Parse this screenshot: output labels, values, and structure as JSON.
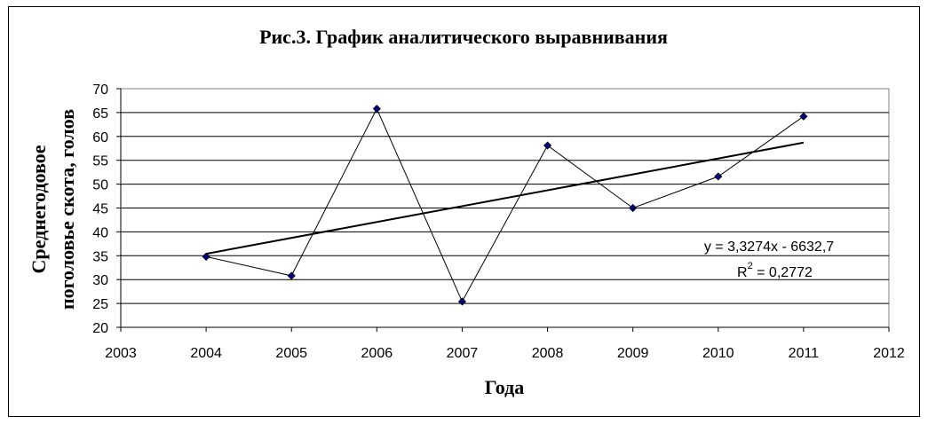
{
  "chart_data": {
    "type": "scatter",
    "title": "Рис.3. График аналитического выравнивания",
    "xlabel": "Года",
    "ylabel_line1": "Среднегодовое",
    "ylabel_line2": "поголовье скота, голов",
    "xlim": [
      2003,
      2012
    ],
    "ylim": [
      20,
      70
    ],
    "x_ticks": [
      "2003",
      "2004",
      "2005",
      "2006",
      "2007",
      "2008",
      "2009",
      "2010",
      "2011",
      "2012"
    ],
    "y_ticks": [
      "20",
      "25",
      "30",
      "35",
      "40",
      "45",
      "50",
      "55",
      "60",
      "65",
      "70"
    ],
    "grid": "horizontal",
    "series": [
      {
        "x": [
          2004,
          2005,
          2006,
          2007,
          2008,
          2009,
          2010,
          2011
        ],
        "values": [
          34.8,
          30.8,
          65.8,
          25.4,
          58.1,
          45.0,
          51.6,
          64.2
        ],
        "color": "#000080"
      }
    ],
    "trendline": {
      "slope": 3.3274,
      "intercept": -6632.7,
      "x_range": [
        2004,
        2011
      ],
      "equation_label": "y = 3,3274x - 6632,7",
      "r2_prefix": "R",
      "r2_sup": "2",
      "r2_value": " = 0,2772"
    }
  }
}
